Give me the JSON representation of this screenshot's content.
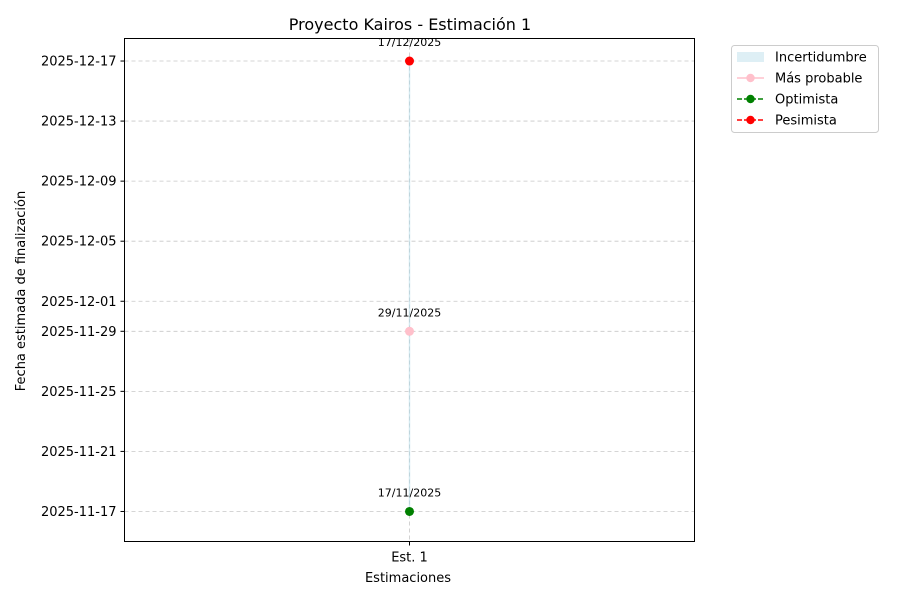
{
  "chart_data": {
    "type": "line",
    "title": "Proyecto Kairos - Estimación 1",
    "xlabel": "Estimaciones",
    "ylabel": "Fecha estimada de finalización",
    "categories": [
      "Est. 1"
    ],
    "y_ticks": [
      "2025-11-17",
      "2025-11-21",
      "2025-11-25",
      "2025-11-29",
      "2025-12-01",
      "2025-12-05",
      "2025-12-09",
      "2025-12-13",
      "2025-12-17"
    ],
    "ylim": [
      "2025-11-15",
      "2025-12-18.5"
    ],
    "grid": true,
    "legend_position": "outside-top-right",
    "band": {
      "name": "Incertidumbre",
      "low": [
        "2025-11-17"
      ],
      "high": [
        "2025-12-17"
      ],
      "color": "#add8e6"
    },
    "series": [
      {
        "name": "Más probable",
        "values": [
          "2025-11-29"
        ],
        "labels": [
          "29/11/2025"
        ],
        "color": "#ffc0cb",
        "linestyle": "solid"
      },
      {
        "name": "Optimista",
        "values": [
          "2025-11-17"
        ],
        "labels": [
          "17/11/2025"
        ],
        "color": "#008000",
        "linestyle": "dashed"
      },
      {
        "name": "Pesimista",
        "values": [
          "2025-12-17"
        ],
        "labels": [
          "17/12/2025"
        ],
        "color": "#ff0000",
        "linestyle": "dashed"
      }
    ]
  }
}
